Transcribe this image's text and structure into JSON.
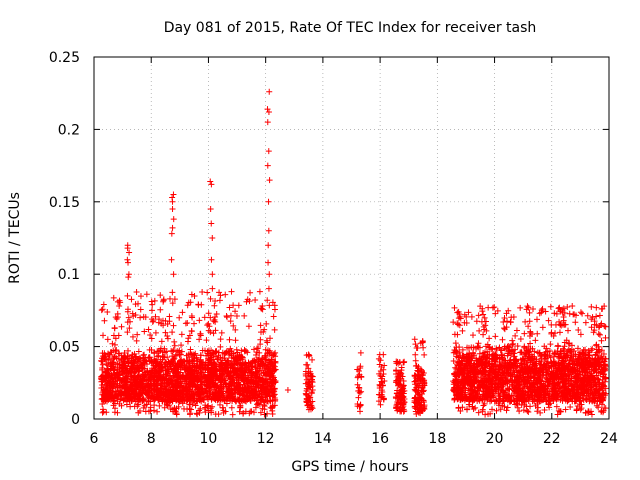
{
  "chart_data": {
    "type": "scatter",
    "title": "Day 081 of 2015, Rate Of TEC Index for receiver tash",
    "xlabel": "GPS time / hours",
    "ylabel": "ROTI / TECUs",
    "xlim": [
      6,
      24
    ],
    "ylim": [
      0,
      0.25
    ],
    "x_ticks": [
      6,
      8,
      10,
      12,
      14,
      16,
      18,
      20,
      22,
      24
    ],
    "x_tick_labels": [
      "6",
      "8",
      "10",
      "12",
      "14",
      "16",
      "18",
      "20",
      "22",
      "24"
    ],
    "y_ticks": [
      0,
      0.05,
      0.1,
      0.15,
      0.2,
      0.25
    ],
    "y_tick_labels": [
      "0",
      "0.05",
      "0.1",
      "0.15",
      "0.2",
      "0.25"
    ],
    "grid": true,
    "marker": "+",
    "marker_color": "#ff0000",
    "segments": [
      {
        "start": 6.25,
        "end": 12.35,
        "n": 2600,
        "base": 0.012,
        "spread": 0.038,
        "max": 0.088
      },
      {
        "start": 13.4,
        "end": 13.65,
        "n": 70,
        "base": 0.008,
        "spread": 0.034,
        "max": 0.045
      },
      {
        "start": 15.2,
        "end": 15.35,
        "n": 25,
        "base": 0.008,
        "spread": 0.035,
        "max": 0.046
      },
      {
        "start": 15.95,
        "end": 16.15,
        "n": 35,
        "base": 0.008,
        "spread": 0.035,
        "max": 0.045
      },
      {
        "start": 16.55,
        "end": 16.85,
        "n": 110,
        "base": 0.005,
        "spread": 0.033,
        "max": 0.04
      },
      {
        "start": 17.2,
        "end": 17.55,
        "n": 140,
        "base": 0.005,
        "spread": 0.038,
        "max": 0.056
      },
      {
        "start": 18.55,
        "end": 23.9,
        "n": 2300,
        "base": 0.012,
        "spread": 0.042,
        "max": 0.078
      }
    ],
    "spikes": [
      {
        "x": 7.2,
        "values": [
          0.06,
          0.07,
          0.085,
          0.098,
          0.1,
          0.108,
          0.11,
          0.115,
          0.118,
          0.12
        ]
      },
      {
        "x": 8.75,
        "values": [
          0.06,
          0.08,
          0.1,
          0.11,
          0.128,
          0.132,
          0.138,
          0.145,
          0.15,
          0.153,
          0.155
        ]
      },
      {
        "x": 10.1,
        "values": [
          0.06,
          0.07,
          0.083,
          0.09,
          0.1,
          0.11,
          0.125,
          0.135,
          0.145,
          0.162,
          0.164
        ]
      },
      {
        "x": 12.1,
        "values": [
          0.09,
          0.1,
          0.108,
          0.12,
          0.13,
          0.15,
          0.165,
          0.175,
          0.185,
          0.205,
          0.212,
          0.214,
          0.226
        ]
      },
      {
        "x": 12.75,
        "values": [
          0.02
        ]
      }
    ]
  }
}
